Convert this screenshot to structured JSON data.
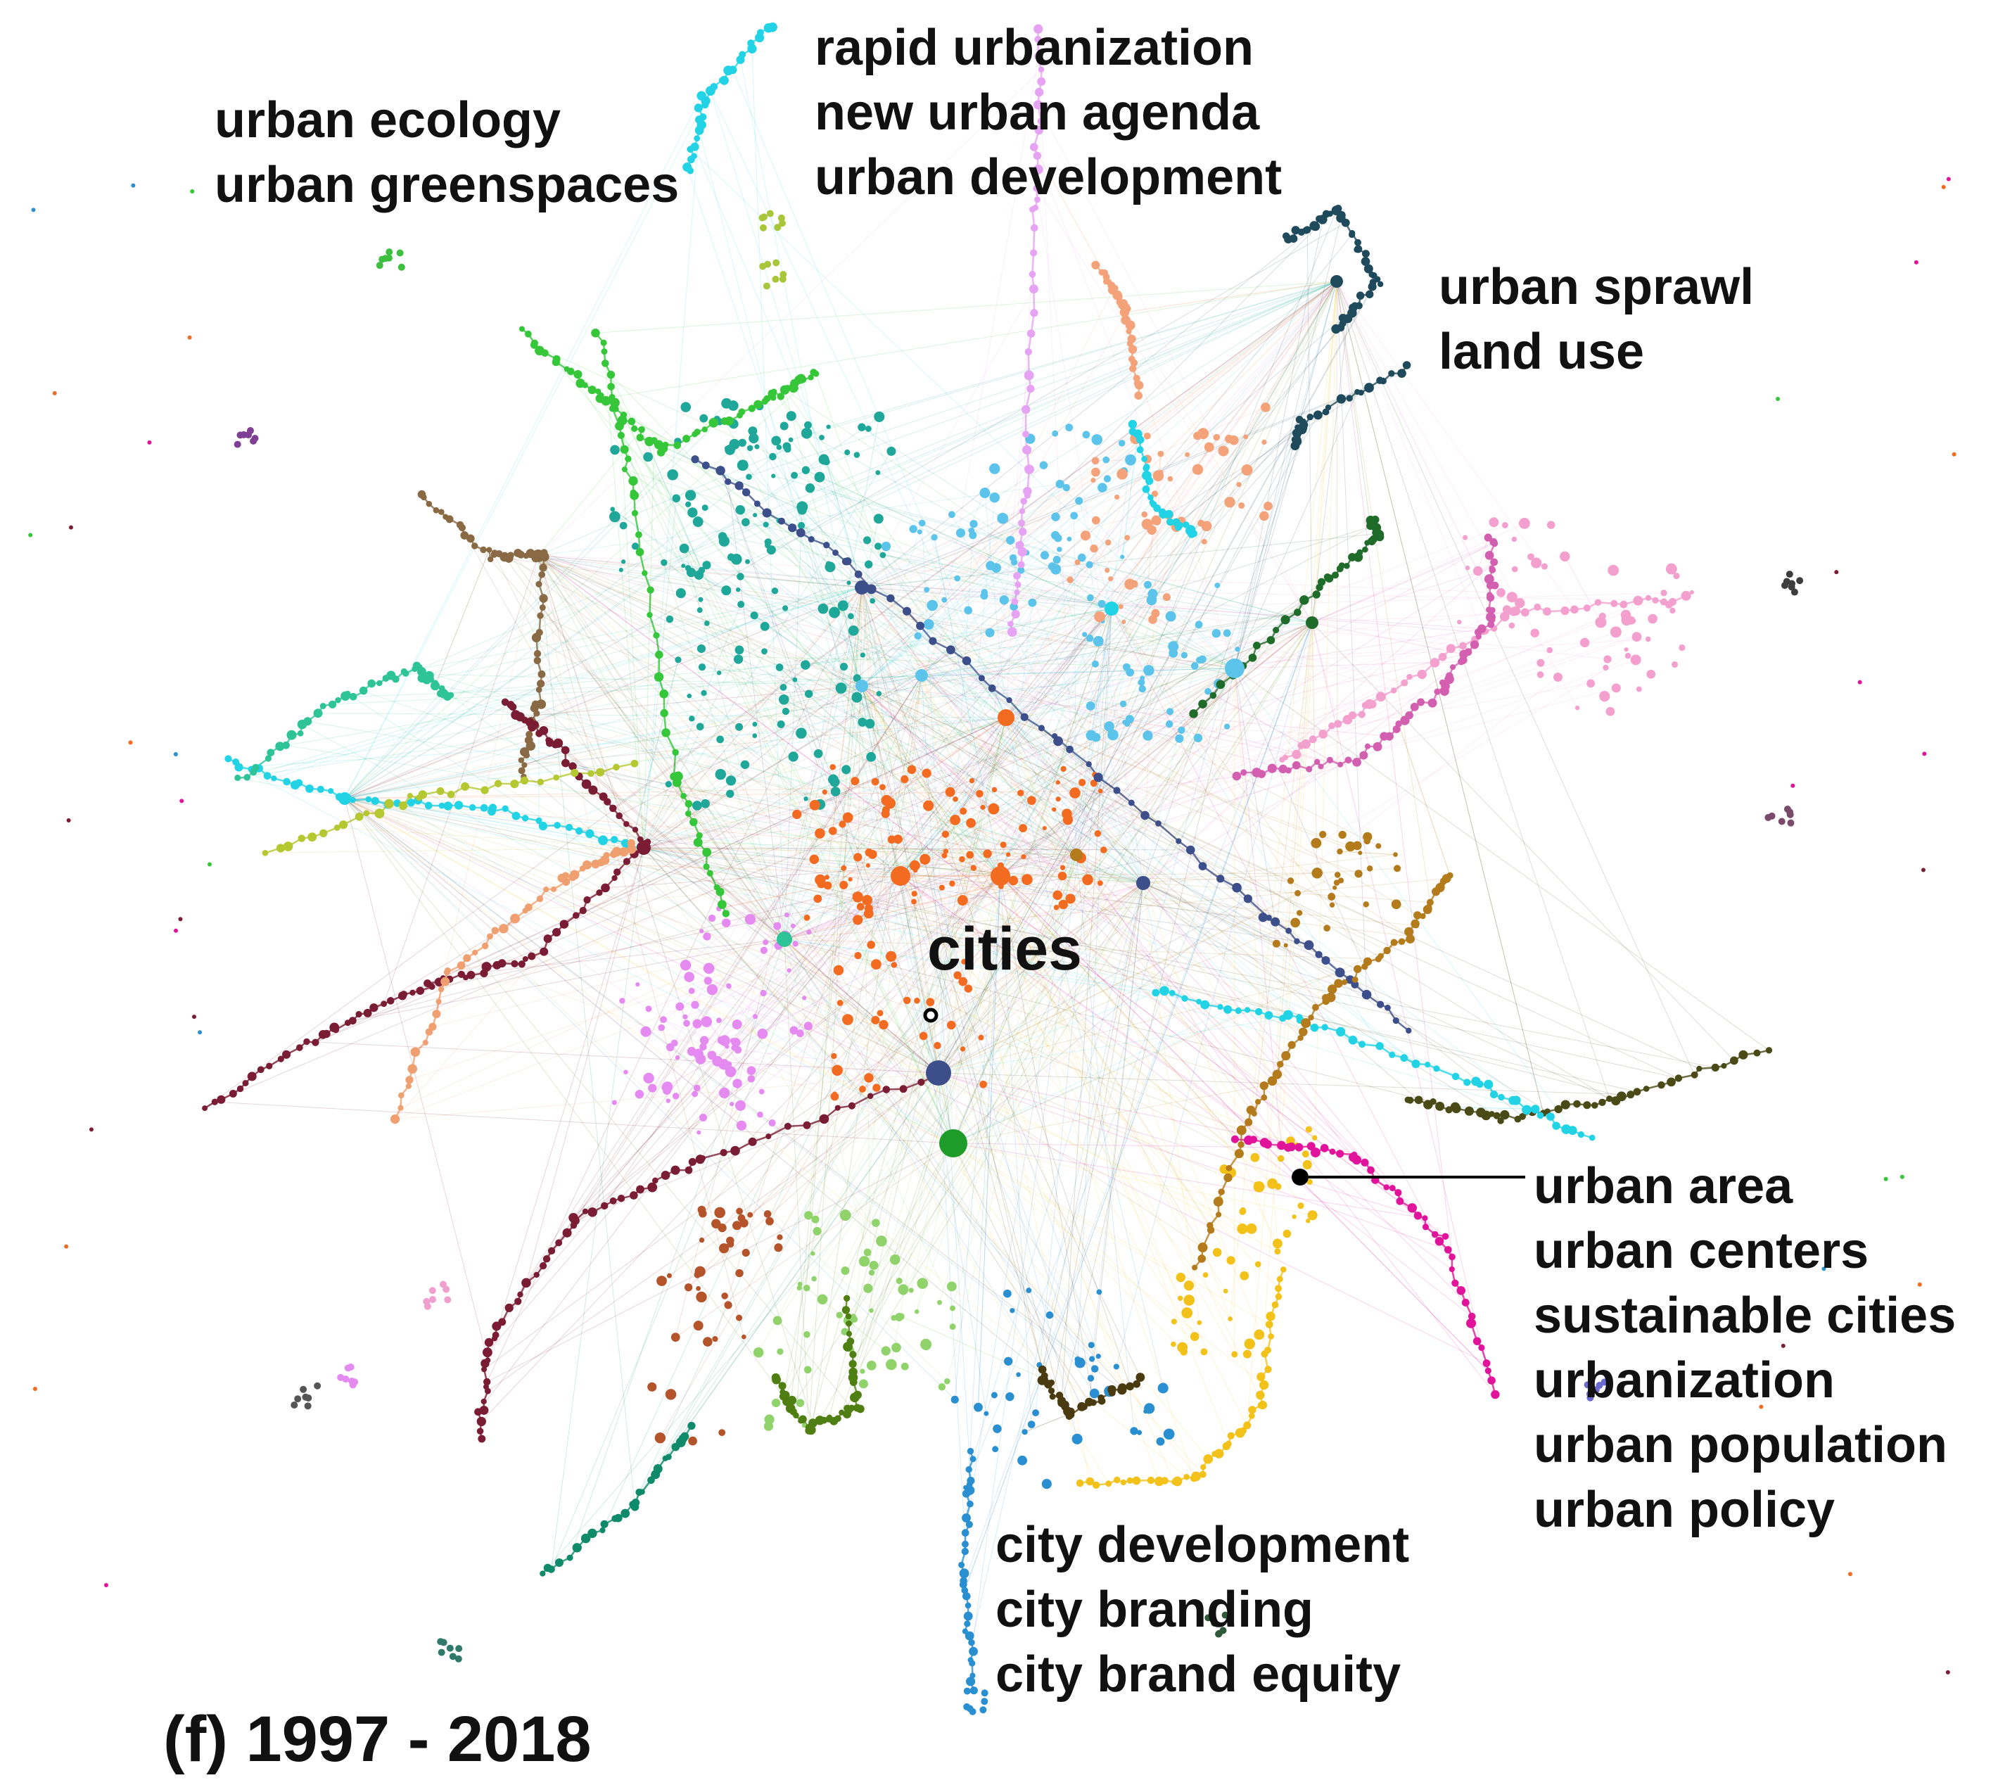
{
  "labels": {
    "ecology_group": [
      "urban ecology",
      "urban greenspaces"
    ],
    "urbanization_group": [
      "rapid urbanization",
      "new urban agenda",
      "urban development"
    ],
    "sprawl_group": [
      "urban sprawl",
      "land use"
    ],
    "cities": "cities",
    "urban_area_group": [
      "urban area",
      "urban centers",
      "sustainable cities",
      "urbanization",
      "urban population",
      "urban policy"
    ],
    "city_group": [
      "city development",
      "city branding",
      "city brand equity"
    ],
    "period": "(f) 1997 - 2018"
  },
  "colors": {
    "teal": "#1fa79a",
    "orange": "#f26b21",
    "sky": "#5cc3ea",
    "cyan": "#22d3e6",
    "green": "#36c63a",
    "lime": "#9ed24a",
    "magenta": "#e0139a",
    "pink": "#f06fc0",
    "violet": "#e58af0",
    "navy": "#3d4f8a",
    "darkslate": "#1f4a5c",
    "brown": "#8a6a44",
    "maroon": "#7a1c33",
    "olive": "#4a4a16",
    "yellow": "#f2c21b",
    "peach": "#f4a27a",
    "darkgreen": "#1f6b2a",
    "blue": "#2a8fd1",
    "rust": "#b5532a",
    "sea": "#2ec497",
    "seagreen": "#0f8a6a",
    "lightgreen": "#8fd36a",
    "palepink": "#f4a0cf",
    "salmon": "#f0a070",
    "ochre": "#b37b1b"
  }
}
